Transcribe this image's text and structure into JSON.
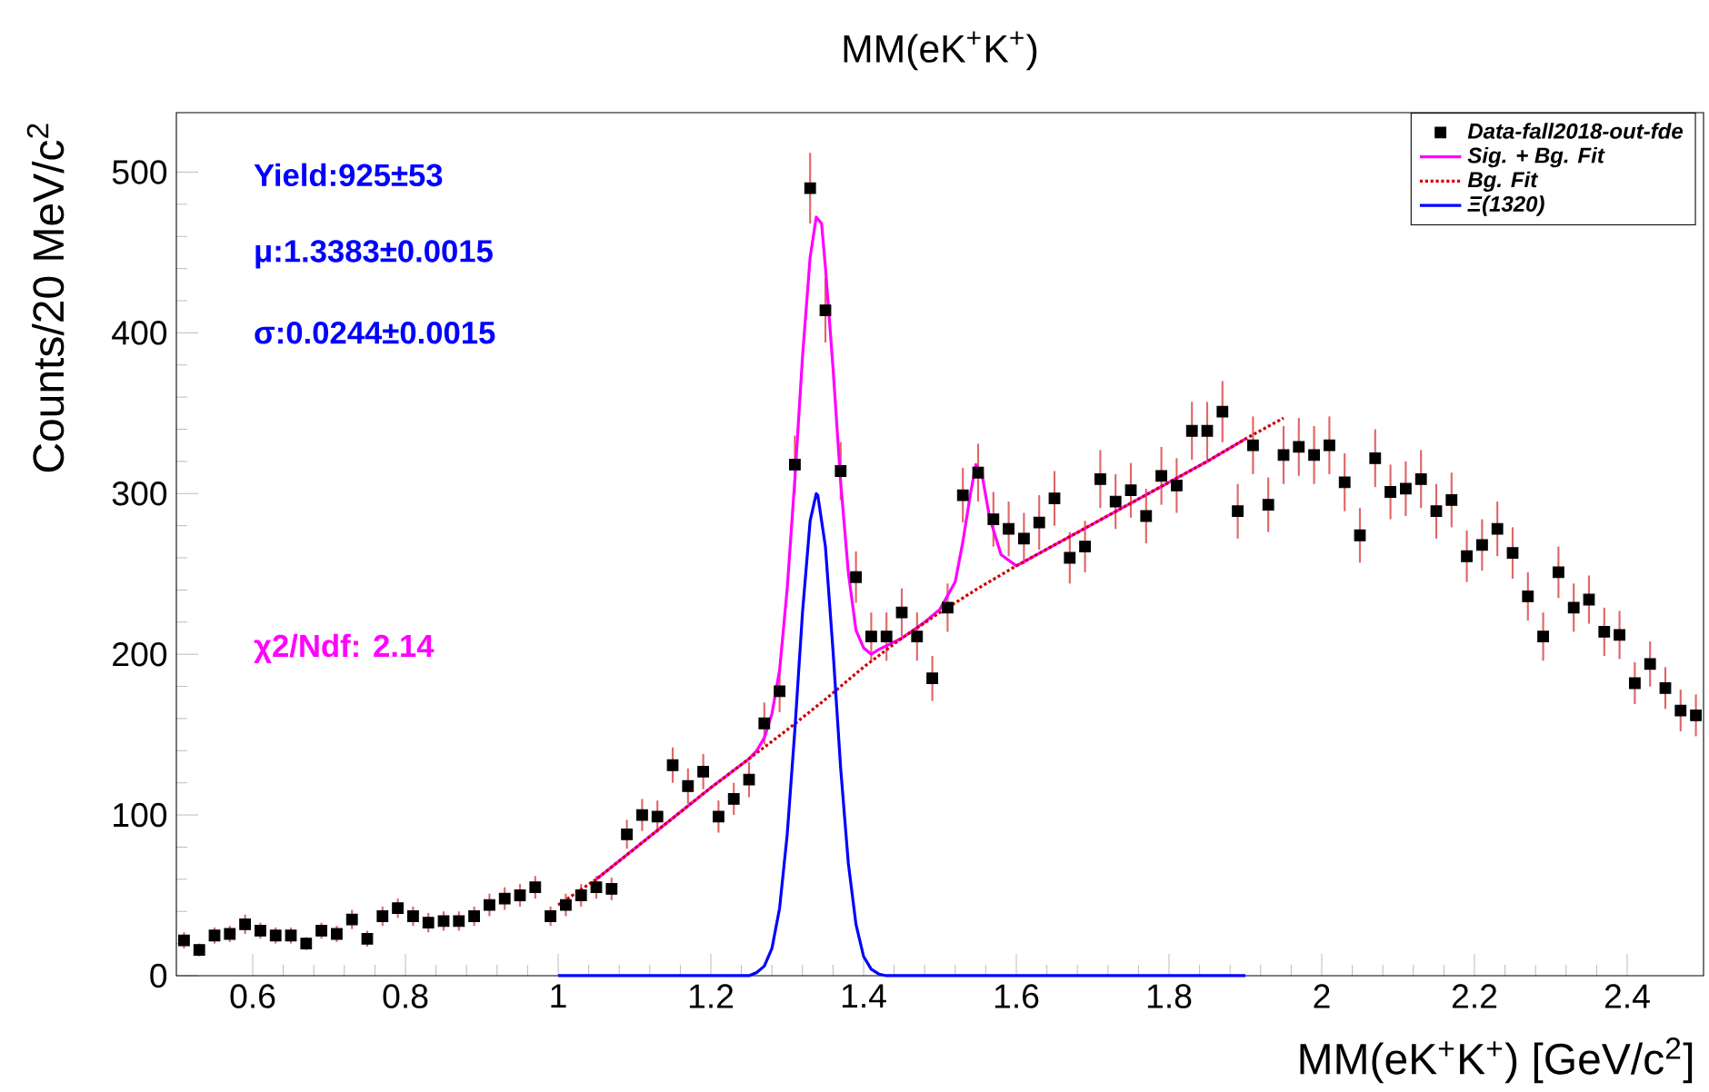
{
  "chart_data": {
    "type": "scatter",
    "title": "MM(eK$^{+}$K$^{+}$)",
    "xlabel": "MM(eK$^{+}$K$^{+}$) [GeV/c$^{2}$]",
    "ylabel": "Counts/20 MeV/c$^{2}$",
    "xlim": [
      0.5,
      2.5
    ],
    "ylim": [
      0,
      537
    ],
    "xticks": [
      0.6,
      0.8,
      1,
      1.2,
      1.4,
      1.6,
      1.8,
      2,
      2.2,
      2.4
    ],
    "yticks": [
      0,
      100,
      200,
      300,
      400,
      500
    ],
    "legend": "top right",
    "grid": false,
    "annotations": [
      "Yield:925±53",
      "μ:1.3383±0.0015",
      "σ:0.0244±0.0015",
      "χ2/Ndf: 2.14"
    ],
    "series": [
      {
        "name": "Data-fall2018-out-fde",
        "type": "scatter",
        "marker": "square",
        "color": "#000000",
        "x": [
          0.51,
          0.53,
          0.55,
          0.57,
          0.59,
          0.61,
          0.63,
          0.65,
          0.67,
          0.69,
          0.71,
          0.73,
          0.75,
          0.77,
          0.79,
          0.81,
          0.83,
          0.85,
          0.87,
          0.89,
          0.91,
          0.93,
          0.95,
          0.97,
          0.99,
          1.01,
          1.03,
          1.05,
          1.07,
          1.09,
          1.11,
          1.13,
          1.15,
          1.17,
          1.19,
          1.21,
          1.23,
          1.25,
          1.27,
          1.29,
          1.31,
          1.33,
          1.35,
          1.37,
          1.39,
          1.41,
          1.43,
          1.45,
          1.47,
          1.49,
          1.51,
          1.53,
          1.55,
          1.57,
          1.59,
          1.61,
          1.63,
          1.65,
          1.67,
          1.69,
          1.71,
          1.73,
          1.75,
          1.77,
          1.79,
          1.81,
          1.83,
          1.85,
          1.87,
          1.89,
          1.91,
          1.93,
          1.95,
          1.97,
          1.99,
          2.01,
          2.03,
          2.05,
          2.07,
          2.09,
          2.11,
          2.13,
          2.15,
          2.17,
          2.19,
          2.21,
          2.23,
          2.25,
          2.27,
          2.29,
          2.31,
          2.33,
          2.35,
          2.37,
          2.39,
          2.41,
          2.43,
          2.45,
          2.47,
          2.49
        ],
        "values": [
          22,
          16,
          25,
          26,
          32,
          28,
          25,
          25,
          20,
          28,
          26,
          35,
          23,
          37,
          42,
          37,
          33,
          34,
          34,
          37,
          44,
          48,
          50,
          55,
          37,
          44,
          50,
          55,
          54,
          88,
          100,
          99,
          131,
          118,
          127,
          99,
          110,
          122,
          157,
          177,
          318,
          490,
          414,
          314,
          248,
          211,
          211,
          226,
          211,
          185,
          229,
          299,
          313,
          284,
          278,
          272,
          282,
          297,
          260,
          267,
          309,
          295,
          302,
          286,
          311,
          305,
          339,
          339,
          351,
          289,
          330,
          293,
          324,
          329,
          324,
          330,
          307,
          274,
          322,
          301,
          303,
          309,
          289,
          296,
          261,
          268,
          278,
          263,
          236,
          211,
          251,
          229,
          234,
          214,
          212,
          182,
          194,
          179,
          165,
          162
        ],
        "errors": [
          5,
          4,
          5,
          5,
          6,
          5,
          5,
          5,
          4,
          5,
          5,
          6,
          5,
          6,
          6,
          6,
          6,
          6,
          6,
          6,
          7,
          7,
          7,
          7,
          6,
          7,
          7,
          7,
          7,
          9,
          10,
          10,
          11,
          11,
          11,
          10,
          10,
          11,
          13,
          13,
          18,
          22,
          20,
          18,
          16,
          15,
          15,
          15,
          15,
          14,
          15,
          17,
          18,
          17,
          17,
          16,
          17,
          17,
          16,
          16,
          18,
          17,
          17,
          17,
          18,
          17,
          18,
          18,
          19,
          17,
          18,
          17,
          18,
          18,
          18,
          18,
          18,
          17,
          18,
          17,
          17,
          18,
          17,
          17,
          16,
          16,
          17,
          16,
          15,
          15,
          16,
          15,
          15,
          15,
          15,
          13,
          14,
          13,
          13,
          13
        ]
      },
      {
        "name": "Sig. + Bg. Fit",
        "type": "line",
        "line_style": "solid",
        "color": "#ff00ff",
        "x": [
          1.05,
          1.1,
          1.15,
          1.2,
          1.25,
          1.26,
          1.27,
          1.28,
          1.29,
          1.3,
          1.31,
          1.32,
          1.33,
          1.338,
          1.345,
          1.35,
          1.36,
          1.37,
          1.38,
          1.39,
          1.4,
          1.41,
          1.42,
          1.45,
          1.48,
          1.5,
          1.52,
          1.53,
          1.54,
          1.547,
          1.555,
          1.565,
          1.58,
          1.6,
          1.65,
          1.7,
          1.75,
          1.8,
          1.85,
          1.9
        ],
        "values": [
          60,
          79,
          98,
          117,
          135,
          140,
          148,
          163,
          190,
          241,
          309,
          385,
          447,
          472,
          468,
          441,
          378,
          307,
          251,
          215,
          204,
          200,
          203,
          210,
          220,
          228,
          245,
          270,
          300,
          318,
          312,
          285,
          262,
          255,
          268,
          281,
          294,
          307,
          320,
          334
        ]
      },
      {
        "name": "Bg. Fit",
        "type": "line",
        "line_style": "dotted",
        "color": "#cc0000",
        "x": [
          1.0,
          1.05,
          1.1,
          1.15,
          1.2,
          1.25,
          1.3,
          1.35,
          1.4,
          1.45,
          1.5,
          1.55,
          1.6,
          1.65,
          1.7,
          1.75,
          1.8,
          1.85,
          1.9,
          1.95
        ],
        "values": [
          44,
          60,
          79,
          98,
          117,
          135,
          153,
          172,
          192,
          210,
          226,
          241,
          255,
          268,
          281,
          294,
          307,
          320,
          334,
          347
        ]
      },
      {
        "name": "Ξ(1320)",
        "type": "line",
        "line_style": "solid",
        "color": "#0000ff",
        "x": [
          1.0,
          1.24,
          1.25,
          1.26,
          1.27,
          1.28,
          1.29,
          1.3,
          1.31,
          1.32,
          1.33,
          1.338,
          1.34,
          1.35,
          1.36,
          1.37,
          1.38,
          1.39,
          1.4,
          1.41,
          1.42,
          1.43,
          1.44,
          1.9
        ],
        "values": [
          0,
          0,
          0,
          2,
          6,
          17,
          42,
          88,
          153,
          226,
          283,
          300,
          299,
          267,
          202,
          129,
          70,
          32,
          12,
          4,
          1,
          0,
          0,
          0
        ]
      }
    ]
  }
}
